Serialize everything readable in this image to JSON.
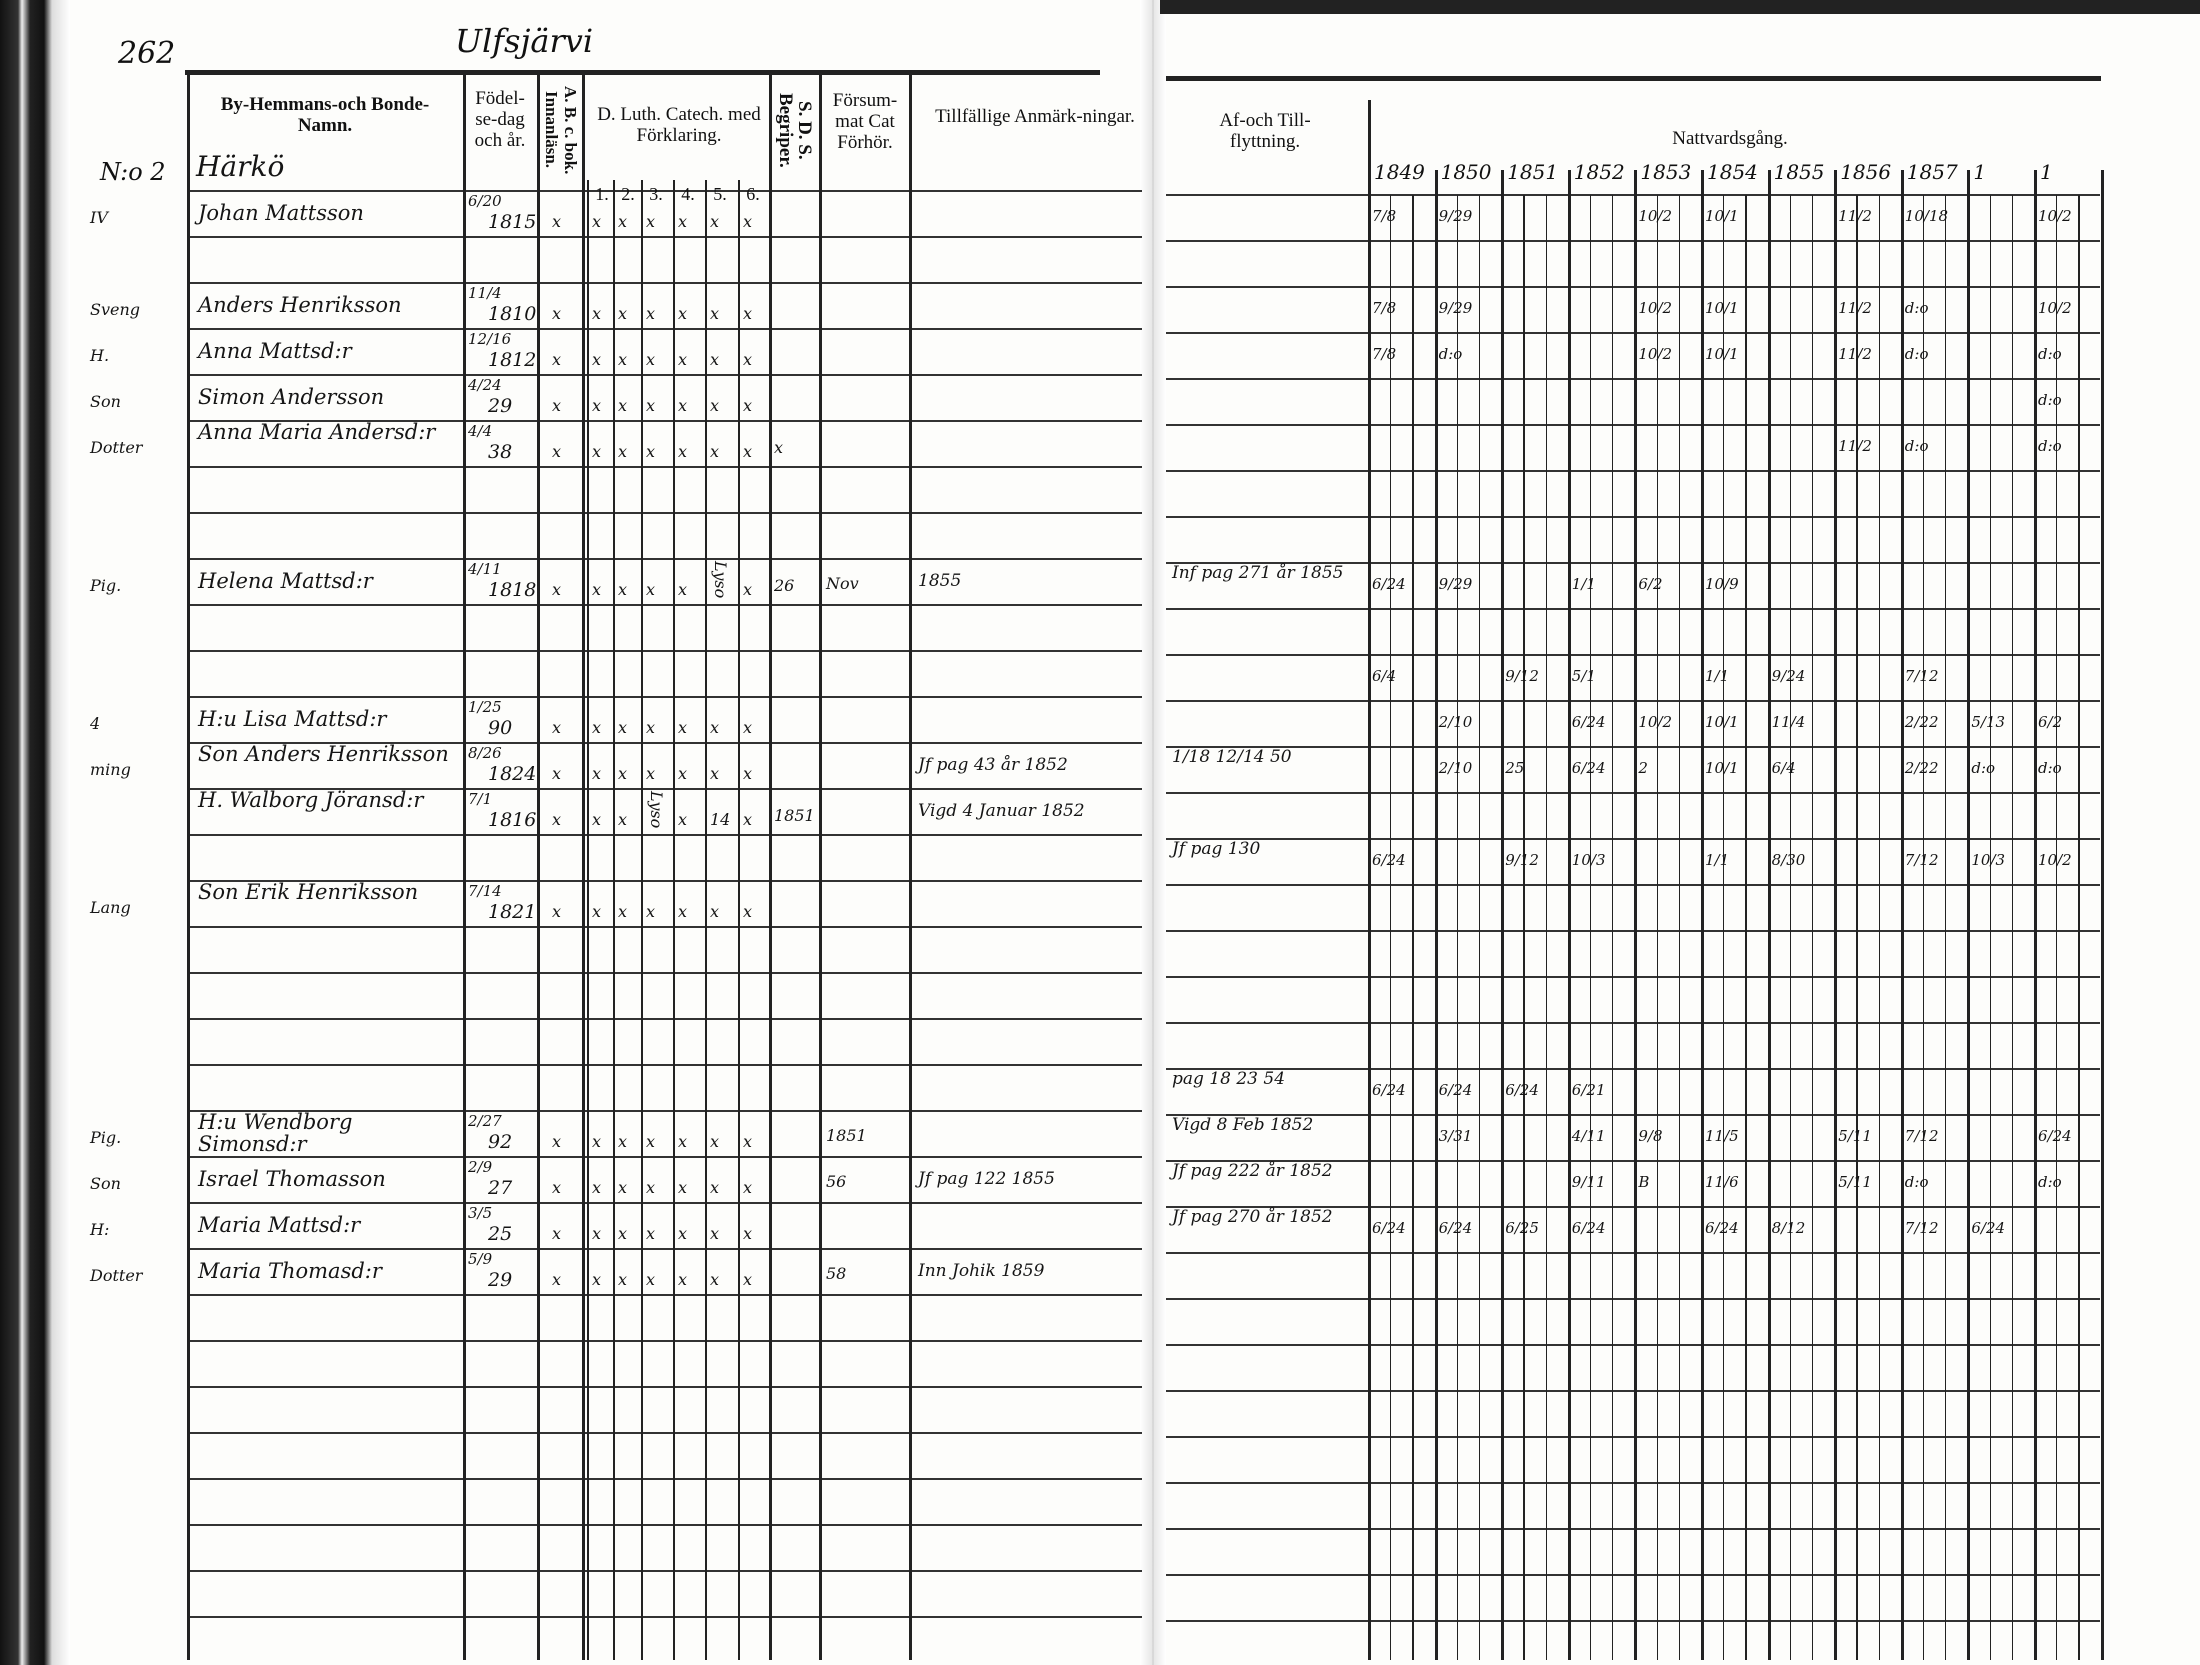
{
  "page_number": "262",
  "parish_heading": "Ulfsjärvi",
  "headers": {
    "name": "By-Hemmans-och Bonde-Namn.",
    "birth": "Födel-se-dag och år.",
    "abc": "A. B. c. bok. Innanläsn.",
    "luther": "D. Luth. Catech. med Förklaring.",
    "luther_sub": [
      "1.",
      "2.",
      "3.",
      "4.",
      "5.",
      "6."
    ],
    "sds": "S. D. S. Begriper.",
    "forsummat": "Försum-mat Cat Förhör.",
    "tillfallige": "Tillfällige Anmärk-ningar.",
    "flyttning": "Af-och Till-flyttning.",
    "nattvard": "Nattvardsgång.",
    "years": [
      "1849",
      "1850",
      "1851",
      "1852",
      "1853",
      "1854",
      "1855",
      "1856",
      "1857",
      "1",
      "1"
    ]
  },
  "farm": {
    "number": "N:o 2",
    "name": "Härkö"
  },
  "entries": [
    {
      "margin": "IV",
      "name": "Johan Mattsson",
      "birth_day": "6/20",
      "birth_year": "1815",
      "abc": "x",
      "luther": [
        "x",
        "x",
        "x",
        "x",
        "x",
        "x"
      ],
      "sds": "",
      "forsummat": "",
      "tillfallige": "",
      "flyttning": "",
      "nattvard": [
        "7/8",
        "9/29",
        "",
        "",
        "10/2",
        "10/1",
        "",
        "11/2",
        "10/18",
        "",
        "10/2"
      ]
    },
    {
      "margin": "Sveng",
      "name": "Anders Henriksson",
      "birth_day": "11/4",
      "birth_year": "1810",
      "abc": "x",
      "luther": [
        "x",
        "x",
        "x",
        "x",
        "x",
        "x"
      ],
      "sds": "",
      "forsummat": "",
      "tillfallige": "",
      "flyttning": "",
      "nattvard": [
        "7/8",
        "9/29",
        "",
        "",
        "10/2",
        "10/1",
        "",
        "11/2",
        "d:o",
        "",
        "10/2"
      ]
    },
    {
      "margin": "H.",
      "name": "Anna Mattsd:r",
      "birth_day": "12/16",
      "birth_year": "1812",
      "abc": "x",
      "luther": [
        "x",
        "x",
        "x",
        "x",
        "x",
        "x"
      ],
      "sds": "",
      "forsummat": "",
      "tillfallige": "",
      "flyttning": "",
      "nattvard": [
        "7/8",
        "d:o",
        "",
        "",
        "10/2",
        "10/1",
        "",
        "11/2",
        "d:o",
        "",
        "d:o"
      ]
    },
    {
      "margin": "Son",
      "name": "Simon Andersson",
      "birth_day": "4/24",
      "birth_year": "29",
      "abc": "x",
      "luther": [
        "x",
        "x",
        "x",
        "x",
        "x",
        "x"
      ],
      "sds": "",
      "forsummat": "",
      "tillfallige": "",
      "flyttning": "",
      "nattvard": [
        "",
        "",
        "",
        "",
        "",
        "",
        "",
        "",
        "",
        "",
        "d:o"
      ]
    },
    {
      "margin": "Dotter",
      "name": "Anna Maria Andersd:r",
      "birth_day": "4/4",
      "birth_year": "38",
      "abc": "x",
      "luther": [
        "x",
        "x",
        "x",
        "x",
        "x",
        "x"
      ],
      "sds": "x",
      "forsummat": "",
      "tillfallige": "",
      "flyttning": "",
      "nattvard": [
        "",
        "",
        "",
        "",
        "",
        "",
        "",
        "11/2",
        "d:o",
        "",
        "d:o"
      ]
    },
    {
      "margin": "Pig.",
      "name": "Helena Mattsd:r",
      "birth_day": "4/11",
      "birth_year": "1818",
      "abc": "x",
      "luther": [
        "x",
        "x",
        "x",
        "x",
        "Lyso",
        "x"
      ],
      "sds": "26",
      "forsummat": "Nov",
      "tillfallige": "1855",
      "flyttning": "Inf pag 271 år 1855",
      "nattvard": [
        "6/24",
        "9/29",
        "",
        "1/1",
        "6/2",
        "10/9",
        "",
        "",
        "",
        "",
        ""
      ]
    },
    {
      "margin": "",
      "name": "",
      "birth_day": "",
      "birth_year": "",
      "abc": "",
      "luther": [
        "",
        "",
        "",
        "",
        "",
        ""
      ],
      "sds": "",
      "forsummat": "",
      "tillfallige": "",
      "flyttning": "",
      "nattvard": [
        "6/4",
        "",
        "9/12",
        "5/1",
        "",
        "1/1",
        "9/24",
        "",
        "7/12",
        "",
        ""
      ]
    },
    {
      "margin": "4",
      "name": "H:u Lisa Mattsd:r",
      "birth_day": "1/25",
      "birth_year": "90",
      "abc": "x",
      "luther": [
        "x",
        "x",
        "x",
        "x",
        "x",
        "x"
      ],
      "sds": "",
      "forsummat": "",
      "tillfallige": "",
      "flyttning": "",
      "nattvard": [
        "",
        "2/10",
        "",
        "6/24",
        "10/2",
        "10/1",
        "11/4",
        "",
        "2/22",
        "5/13",
        "6/2"
      ]
    },
    {
      "margin": "ming",
      "name": "Son Anders Henriksson",
      "birth_day": "8/26",
      "birth_year": "1824",
      "abc": "x",
      "luther": [
        "x",
        "x",
        "x",
        "x",
        "x",
        "x"
      ],
      "sds": "",
      "forsummat": "",
      "tillfallige": "Jf pag 43 år 1852",
      "flyttning": "1/18 12/14 50",
      "nattvard": [
        "",
        "2/10",
        "25",
        "6/24",
        "2",
        "10/1",
        "6/4",
        "",
        "2/22",
        "d:o",
        "d:o"
      ]
    },
    {
      "margin": "",
      "name": "H. Walborg Jöransd:r",
      "birth_day": "7/1",
      "birth_year": "1816",
      "abc": "x",
      "luther": [
        "x",
        "x",
        "Lyso",
        "x",
        "14",
        "x"
      ],
      "sds": "1851",
      "forsummat": "",
      "tillfallige": "Vigd 4 Januar 1852",
      "flyttning": "",
      "nattvard": [
        "",
        "",
        "",
        "",
        "",
        "",
        "",
        "",
        "",
        "",
        ""
      ]
    },
    {
      "margin": "",
      "name": "",
      "birth_day": "",
      "birth_year": "",
      "abc": "",
      "luther": [
        "",
        "",
        "",
        "",
        "",
        ""
      ],
      "sds": "",
      "forsummat": "",
      "tillfallige": "",
      "flyttning": "Jf pag 130",
      "nattvard": [
        "6/24",
        "",
        "9/12",
        "10/3",
        "",
        "1/1",
        "8/30",
        "",
        "7/12",
        "10/3",
        "10/2"
      ]
    },
    {
      "margin": "Lang",
      "name": "Son Erik Henriksson",
      "birth_day": "7/14",
      "birth_year": "1821",
      "abc": "x",
      "luther": [
        "x",
        "x",
        "x",
        "x",
        "x",
        "x"
      ],
      "sds": "",
      "forsummat": "",
      "tillfallige": "",
      "flyttning": "",
      "nattvard": [
        "",
        "",
        "",
        "",
        "",
        "",
        "",
        "",
        "",
        "",
        ""
      ]
    },
    {
      "margin": "",
      "name": "",
      "birth_day": "",
      "birth_year": "",
      "abc": "",
      "luther": [
        "",
        "",
        "",
        "",
        "",
        ""
      ],
      "sds": "",
      "forsummat": "",
      "tillfallige": "",
      "flyttning": "pag 18 23 54",
      "nattvard": [
        "6/24",
        "6/24",
        "6/24",
        "6/21",
        "",
        "",
        "",
        "",
        "",
        "",
        ""
      ]
    },
    {
      "margin": "Pig.",
      "name": "H:u Wendborg Simonsd:r",
      "birth_day": "2/27",
      "birth_year": "92",
      "abc": "x",
      "luther": [
        "x",
        "x",
        "x",
        "x",
        "x",
        "x"
      ],
      "sds": "",
      "forsummat": "1851",
      "tillfallige": "",
      "flyttning": "Vigd 8 Feb 1852",
      "nattvard": [
        "",
        "3/31",
        "",
        "4/11",
        "9/8",
        "11/5",
        "",
        "5/11",
        "7/12",
        "",
        "6/24"
      ]
    },
    {
      "margin": "Son",
      "name": "Israel Thomasson",
      "birth_day": "2/9",
      "birth_year": "27",
      "abc": "x",
      "luther": [
        "x",
        "x",
        "x",
        "x",
        "x",
        "x"
      ],
      "sds": "",
      "forsummat": "56",
      "tillfallige": "Jf pag 122 1855",
      "flyttning": "Jf pag 222 år 1852",
      "nattvard": [
        "",
        "",
        "",
        "9/11",
        "B",
        "11/6",
        "",
        "5/11",
        "d:o",
        "",
        "d:o"
      ]
    },
    {
      "margin": "H:",
      "name": "Maria Mattsd:r",
      "birth_day": "3/5",
      "birth_year": "25",
      "abc": "x",
      "luther": [
        "x",
        "x",
        "x",
        "x",
        "x",
        "x"
      ],
      "sds": "",
      "forsummat": "",
      "tillfallige": "",
      "flyttning": "Jf pag 270 år 1852",
      "nattvard": [
        "6/24",
        "6/24",
        "6/25",
        "6/24",
        "",
        "6/24",
        "8/12",
        "",
        "7/12",
        "6/24",
        ""
      ]
    },
    {
      "margin": "Dotter",
      "name": "Maria Thomasd:r",
      "birth_day": "5/9",
      "birth_year": "29",
      "abc": "x",
      "luther": [
        "x",
        "x",
        "x",
        "x",
        "x",
        "x"
      ],
      "sds": "",
      "forsummat": "58",
      "tillfallige": "Inn Johik 1859",
      "flyttning": "",
      "nattvard": [
        "",
        "",
        "",
        "",
        "",
        "",
        "",
        "",
        "",
        "",
        ""
      ]
    }
  ]
}
